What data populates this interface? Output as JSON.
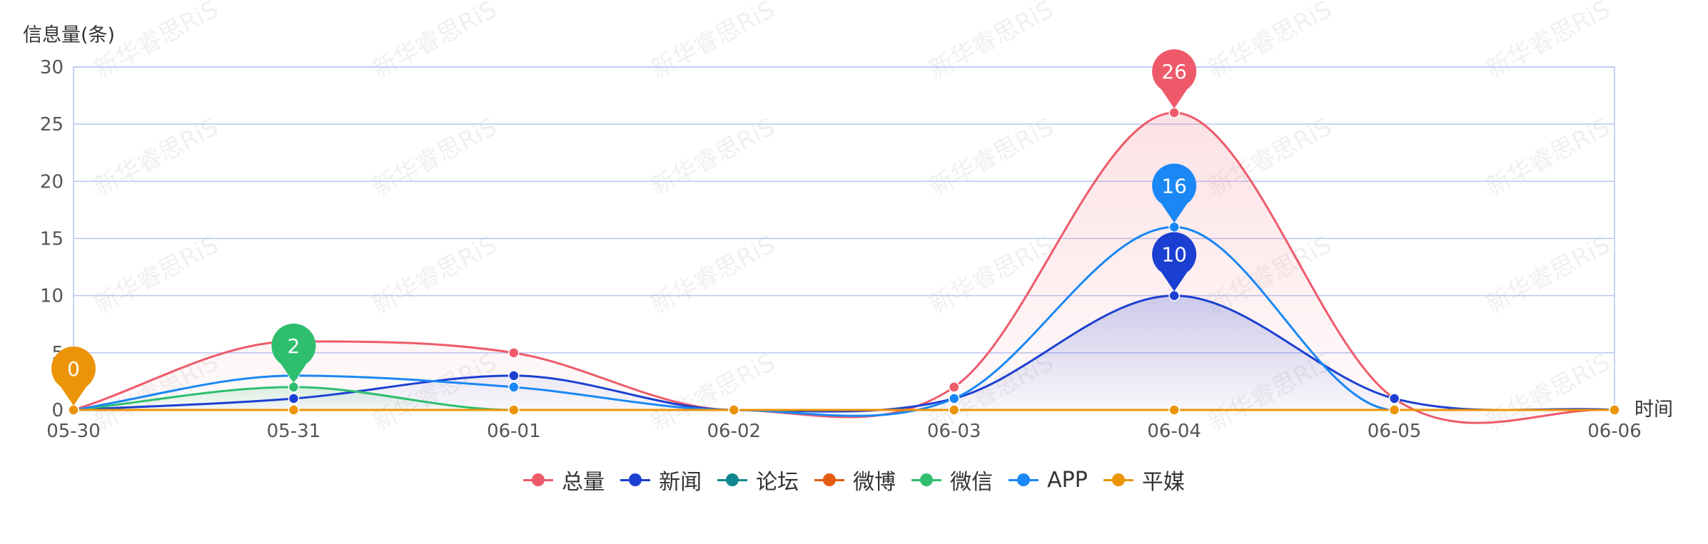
{
  "chart_data": {
    "type": "area",
    "ylabel": "信息量(条)",
    "xlabel": "时间",
    "ylim": [
      0,
      30
    ],
    "yticks": [
      "0",
      "5",
      "10",
      "15",
      "20",
      "25",
      "30"
    ],
    "categories": [
      "05-30",
      "05-31",
      "06-01",
      "06-02",
      "06-03",
      "06-04",
      "06-05",
      "06-06"
    ],
    "grid": true,
    "legend_position": "bottom-center",
    "watermark": "新华睿思RiS",
    "series": [
      {
        "name": "总量",
        "color": "#ee5a6a",
        "values": [
          0,
          6,
          5,
          0,
          2,
          26,
          1,
          0
        ]
      },
      {
        "name": "新闻",
        "color": "#1b3fd1",
        "values": [
          0,
          1,
          3,
          0,
          1,
          10,
          1,
          0
        ]
      },
      {
        "name": "论坛",
        "color": "#11888f",
        "values": [
          0,
          0,
          0,
          0,
          0,
          0,
          0,
          0
        ]
      },
      {
        "name": "微博",
        "color": "#e55b12",
        "values": [
          0,
          0,
          0,
          0,
          0,
          0,
          0,
          0
        ]
      },
      {
        "name": "微信",
        "color": "#2fbe6e",
        "values": [
          0,
          2,
          0,
          0,
          0,
          0,
          0,
          0
        ]
      },
      {
        "name": "APP",
        "color": "#1a87f5",
        "values": [
          0,
          3,
          2,
          0,
          1,
          16,
          0,
          0
        ]
      },
      {
        "name": "平媒",
        "color": "#eb9408",
        "values": [
          0,
          0,
          0,
          0,
          0,
          0,
          0,
          0
        ]
      }
    ],
    "max_markers": [
      {
        "series": "总量",
        "category": "06-04",
        "label": "26"
      },
      {
        "series": "APP",
        "category": "06-04",
        "label": "16"
      },
      {
        "series": "新闻",
        "category": "06-04",
        "label": "10"
      },
      {
        "series": "微信",
        "category": "05-31",
        "label": "2"
      },
      {
        "series": "平媒",
        "category": "05-30",
        "label": "0"
      }
    ]
  }
}
